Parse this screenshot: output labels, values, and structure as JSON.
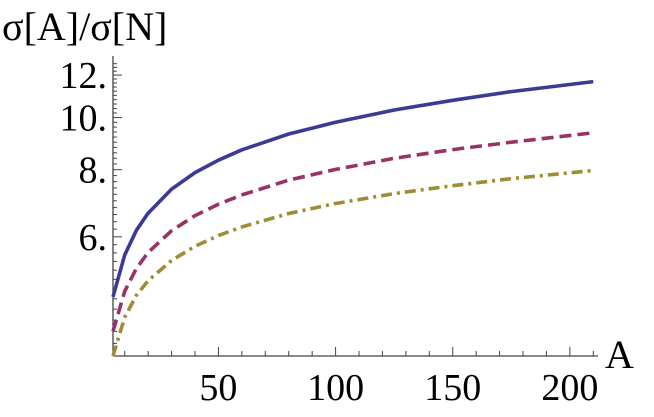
{
  "chart_data": {
    "type": "line",
    "ylabel": "σ[A]/σ[N]",
    "xlabel": "A",
    "xlim": [
      5,
      212
    ],
    "ylim": [
      3.6,
      12.8
    ],
    "y_scale": "log",
    "x_ticks": [
      50,
      100,
      150,
      200
    ],
    "x_tick_labels": [
      "50",
      "100",
      "150",
      "200"
    ],
    "y_ticks": [
      6,
      8,
      10,
      12
    ],
    "y_tick_labels": [
      "6.",
      "8.",
      "10.",
      "12."
    ],
    "grid": false,
    "legend": "none",
    "series": [
      {
        "color": "#3b3b96",
        "dash": "solid",
        "x": [
          5,
          10,
          15,
          20,
          30,
          40,
          50,
          60,
          80,
          100,
          125,
          150,
          175,
          210
        ],
        "y": [
          4.64,
          5.55,
          6.17,
          6.64,
          7.36,
          7.9,
          8.33,
          8.71,
          9.32,
          9.8,
          10.33,
          10.77,
          11.18,
          11.67
        ]
      },
      {
        "color": "#993366",
        "dash": "dashed",
        "x": [
          5,
          10,
          15,
          20,
          30,
          40,
          50,
          60,
          80,
          100,
          125,
          150,
          175,
          210
        ],
        "y": [
          4.0,
          4.75,
          5.24,
          5.61,
          6.16,
          6.57,
          6.9,
          7.18,
          7.65,
          8.01,
          8.4,
          8.72,
          9.0,
          9.37
        ]
      },
      {
        "color": "#a08c32",
        "dash": "dashdot",
        "x": [
          5,
          10,
          15,
          20,
          30,
          40,
          50,
          60,
          80,
          100,
          125,
          150,
          175,
          210
        ],
        "y": [
          3.6,
          4.25,
          4.67,
          4.97,
          5.42,
          5.76,
          6.03,
          6.26,
          6.63,
          6.92,
          7.22,
          7.47,
          7.7,
          7.97
        ]
      }
    ]
  }
}
